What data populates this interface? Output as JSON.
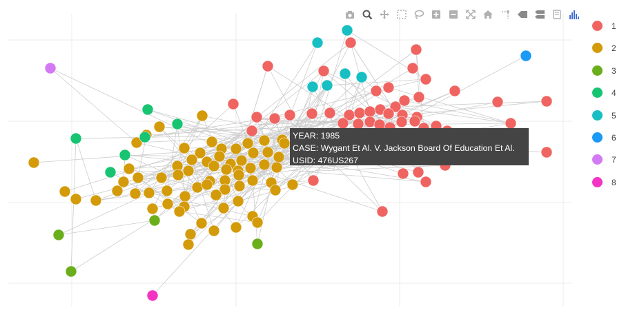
{
  "modebar": {
    "buttons": [
      {
        "name": "camera-icon",
        "color": "#b0b0b0"
      },
      {
        "name": "zoom-icon",
        "color": "#5a5a5a"
      },
      {
        "name": "pan-icon",
        "color": "#b0b0b0"
      },
      {
        "name": "box-select-icon",
        "color": "#b0b0b0"
      },
      {
        "name": "lasso-icon",
        "color": "#b0b0b0"
      },
      {
        "name": "zoom-in-icon",
        "color": "#b0b0b0"
      },
      {
        "name": "zoom-out-icon",
        "color": "#b0b0b0"
      },
      {
        "name": "autoscale-icon",
        "color": "#b0b0b0"
      },
      {
        "name": "home-icon",
        "color": "#b0b0b0"
      },
      {
        "name": "spike-lines-icon",
        "color": "#b0b0b0"
      },
      {
        "name": "hover-closest-icon",
        "color": "#8a8a8a"
      },
      {
        "name": "hover-compare-icon",
        "color": "#8a8a8a"
      },
      {
        "name": "book-icon",
        "color": "#b0b0b0"
      },
      {
        "name": "plotly-logo-icon",
        "color": "#3f6fd1"
      }
    ]
  },
  "legend": [
    {
      "label": "1",
      "color": "#EF6461"
    },
    {
      "label": "2",
      "color": "#D39A0A"
    },
    {
      "label": "3",
      "color": "#6AAF1B"
    },
    {
      "label": "4",
      "color": "#17C472"
    },
    {
      "label": "5",
      "color": "#17BFC3"
    },
    {
      "label": "6",
      "color": "#1A9AF4"
    },
    {
      "label": "7",
      "color": "#D37AF3"
    },
    {
      "label": "8",
      "color": "#F334C3"
    }
  ],
  "tooltip": {
    "year": "YEAR: 1985",
    "case": "CASE: Wygant Et Al. V. Jackson Board Of Education Et Al.",
    "usid": "USID: 476US267"
  },
  "chart_data": {
    "type": "scatter",
    "grid": true,
    "legend_position": "right",
    "series": [
      {
        "name": "1",
        "color": "#EF6461",
        "points": [
          [
            508,
            62
          ],
          [
            603,
            72
          ],
          [
            388,
            96
          ],
          [
            469,
            103
          ],
          [
            598,
            99
          ],
          [
            617,
            115
          ],
          [
            545,
            132
          ],
          [
            563,
            127
          ],
          [
            659,
            132
          ],
          [
            586,
            146
          ],
          [
            607,
            141
          ],
          [
            573,
            155
          ],
          [
            721,
            148
          ],
          [
            792,
            147
          ],
          [
            338,
            151
          ],
          [
            372,
            170
          ],
          [
            398,
            172
          ],
          [
            420,
            167
          ],
          [
            452,
            165
          ],
          [
            478,
            164
          ],
          [
            506,
            167
          ],
          [
            521,
            164
          ],
          [
            536,
            162
          ],
          [
            551,
            159
          ],
          [
            563,
            165
          ],
          [
            583,
            167
          ],
          [
            604,
            170
          ],
          [
            497,
            179
          ],
          [
            519,
            180
          ],
          [
            536,
            177
          ],
          [
            550,
            181
          ],
          [
            565,
            185
          ],
          [
            582,
            177
          ],
          [
            601,
            176
          ],
          [
            614,
            186
          ],
          [
            632,
            183
          ],
          [
            365,
            190
          ],
          [
            740,
            179
          ],
          [
            648,
            190
          ],
          [
            792,
            221
          ],
          [
            584,
            252
          ],
          [
            606,
            250
          ],
          [
            617,
            264
          ],
          [
            454,
            262
          ],
          [
            645,
            240
          ],
          [
            554,
            307
          ]
        ]
      },
      {
        "name": "2",
        "color": "#D39A0A",
        "points": [
          [
            293,
            168
          ],
          [
            231,
            184
          ],
          [
            198,
            207
          ],
          [
            212,
            196
          ],
          [
            49,
            236
          ],
          [
            267,
            215
          ],
          [
            290,
            222
          ],
          [
            307,
            206
          ],
          [
            321,
            216
          ],
          [
            342,
            216
          ],
          [
            359,
            208
          ],
          [
            383,
            204
          ],
          [
            409,
            203
          ],
          [
            278,
            232
          ],
          [
            300,
            235
          ],
          [
            318,
            227
          ],
          [
            334,
            238
          ],
          [
            350,
            233
          ],
          [
            367,
            222
          ],
          [
            388,
            221
          ],
          [
            404,
            228
          ],
          [
            187,
            245
          ],
          [
            257,
            241
          ],
          [
            273,
            248
          ],
          [
            310,
            241
          ],
          [
            328,
            246
          ],
          [
            345,
            248
          ],
          [
            363,
            244
          ],
          [
            383,
            239
          ],
          [
            401,
            243
          ],
          [
            258,
            254
          ],
          [
            179,
            264
          ],
          [
            200,
            258
          ],
          [
            234,
            258
          ],
          [
            304,
            263
          ],
          [
            326,
            262
          ],
          [
            346,
            254
          ],
          [
            366,
            262
          ],
          [
            393,
            265
          ],
          [
            424,
            268
          ],
          [
            94,
            278
          ],
          [
            110,
            289
          ],
          [
            139,
            291
          ],
          [
            170,
            277
          ],
          [
            196,
            281
          ],
          [
            216,
            280
          ],
          [
            242,
            277
          ],
          [
            268,
            285
          ],
          [
            286,
            272
          ],
          [
            300,
            268
          ],
          [
            326,
            275
          ],
          [
            347,
            270
          ],
          [
            399,
            276
          ],
          [
            221,
            303
          ],
          [
            243,
            296
          ],
          [
            267,
            300
          ],
          [
            313,
            283
          ],
          [
            324,
            302
          ],
          [
            345,
            292
          ],
          [
            260,
            307
          ],
          [
            366,
            314
          ],
          [
            373,
            323
          ],
          [
            292,
            324
          ],
          [
            310,
            335
          ],
          [
            342,
            330
          ],
          [
            276,
            340
          ],
          [
            273,
            355
          ],
          [
            412,
            208
          ]
        ]
      },
      {
        "name": "3",
        "color": "#6AAF1B",
        "points": [
          [
            224,
            320
          ],
          [
            85,
            341
          ],
          [
            373,
            354
          ],
          [
            103,
            394
          ]
        ]
      },
      {
        "name": "4",
        "color": "#17C472",
        "points": [
          [
            214,
            159
          ],
          [
            257,
            180
          ],
          [
            110,
            201
          ],
          [
            210,
            199
          ],
          [
            181,
            225
          ],
          [
            160,
            250
          ]
        ]
      },
      {
        "name": "5",
        "color": "#17BFC3",
        "points": [
          [
            503,
            44
          ],
          [
            460,
            62
          ],
          [
            500,
            107
          ],
          [
            524,
            112
          ],
          [
            474,
            124
          ],
          [
            453,
            126
          ]
        ]
      },
      {
        "name": "6",
        "color": "#1A9AF4",
        "points": [
          [
            762,
            81
          ]
        ]
      },
      {
        "name": "7",
        "color": "#D37AF3",
        "points": [
          [
            73,
            99
          ]
        ]
      },
      {
        "name": "8",
        "color": "#F334C3",
        "points": [
          [
            221,
            429
          ]
        ]
      }
    ],
    "edges_sampled": true
  }
}
